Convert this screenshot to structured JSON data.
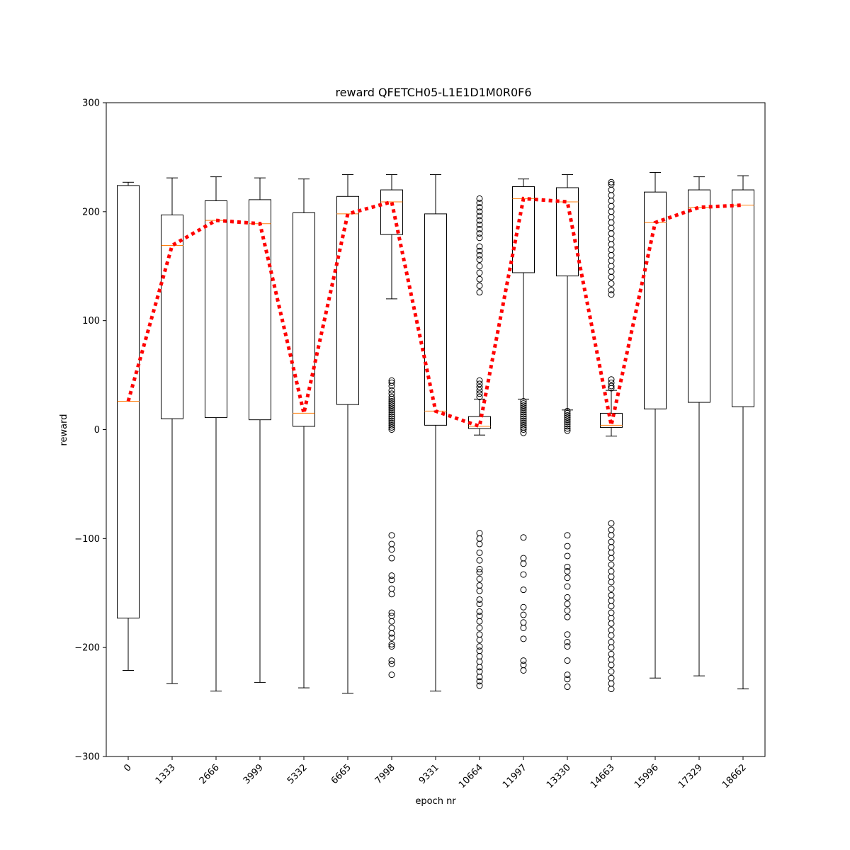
{
  "chart_data": {
    "type": "box",
    "title": "reward QFETCH05-L1E1D1M0R0F6",
    "xlabel": "epoch nr",
    "ylabel": "reward",
    "ylim": [
      -300,
      300
    ],
    "yticks": [
      -300,
      -200,
      -100,
      0,
      100,
      200,
      300
    ],
    "categories": [
      "0",
      "1333",
      "2666",
      "3999",
      "5332",
      "6665",
      "7998",
      "9331",
      "10664",
      "11997",
      "13330",
      "14663",
      "15996",
      "17329",
      "18662"
    ],
    "boxes": [
      {
        "label": "0",
        "whislo": -221,
        "q1": -173,
        "med": 26,
        "q3": 224,
        "whishi": 227,
        "fliers": []
      },
      {
        "label": "1333",
        "whislo": -233,
        "q1": 10,
        "med": 169,
        "q3": 197,
        "whishi": 231,
        "fliers": []
      },
      {
        "label": "2666",
        "whislo": -240,
        "q1": 11,
        "med": 192,
        "q3": 210,
        "whishi": 232,
        "fliers": []
      },
      {
        "label": "3999",
        "whislo": -232,
        "q1": 9,
        "med": 189,
        "q3": 211,
        "whishi": 231,
        "fliers": []
      },
      {
        "label": "5332",
        "whislo": -237,
        "q1": 3,
        "med": 15,
        "q3": 199,
        "whishi": 230,
        "fliers": []
      },
      {
        "label": "6665",
        "whislo": -242,
        "q1": 23,
        "med": 198,
        "q3": 214,
        "whishi": 234,
        "fliers": []
      },
      {
        "label": "7998",
        "whislo": 120,
        "q1": 179,
        "med": 209,
        "q3": 220,
        "whishi": 234,
        "fliers": [
          0,
          2,
          4,
          6,
          8,
          10,
          12,
          14,
          16,
          18,
          20,
          22,
          24,
          26,
          28,
          30,
          33,
          36,
          40,
          43,
          45,
          -97,
          -105,
          -110,
          -118,
          -134,
          -138,
          -146,
          -151,
          -168,
          -171,
          -176,
          -182,
          -187,
          -191,
          -197,
          -199,
          -212,
          -215,
          -225
        ]
      },
      {
        "label": "9331",
        "whislo": -240,
        "q1": 4,
        "med": 17,
        "q3": 198,
        "whishi": 234,
        "fliers": []
      },
      {
        "label": "10664",
        "whislo": -5,
        "q1": 1,
        "med": 3,
        "q3": 12,
        "whishi": 28,
        "fliers": [
          30,
          33,
          36,
          39,
          42,
          45,
          126,
          132,
          138,
          144,
          150,
          156,
          160,
          164,
          168,
          176,
          180,
          184,
          188,
          192,
          196,
          200,
          204,
          208,
          212,
          -95,
          -100,
          -105,
          -113,
          -120,
          -128,
          -131,
          -137,
          -143,
          -148,
          -156,
          -160,
          -167,
          -171,
          -176,
          -182,
          -188,
          -193,
          -199,
          -203,
          -208,
          -213,
          -218,
          -222,
          -227,
          -231,
          -235
        ]
      },
      {
        "label": "11997",
        "whislo": 28,
        "q1": 144,
        "med": 212,
        "q3": 223,
        "whishi": 230,
        "fliers": [
          -3,
          0,
          2,
          4,
          6,
          8,
          10,
          12,
          14,
          16,
          18,
          20,
          22,
          24,
          26,
          -99,
          -118,
          -123,
          -133,
          -147,
          -163,
          -170,
          -177,
          -182,
          -192,
          -212,
          -216,
          -221
        ]
      },
      {
        "label": "13330",
        "whislo": 18,
        "q1": 141,
        "med": 209,
        "q3": 222,
        "whishi": 234,
        "fliers": [
          -1,
          1,
          3,
          5,
          7,
          9,
          11,
          13,
          15,
          17,
          -97,
          -107,
          -116,
          -126,
          -130,
          -136,
          -144,
          -154,
          -160,
          -166,
          -172,
          -188,
          -195,
          -199,
          -212,
          -225,
          -229,
          -236
        ]
      },
      {
        "label": "14663",
        "whislo": -6,
        "q1": 2,
        "med": 4,
        "q3": 15,
        "whishi": 36,
        "fliers": [
          38,
          40,
          43,
          46,
          124,
          128,
          134,
          140,
          145,
          150,
          155,
          160,
          165,
          170,
          175,
          180,
          185,
          190,
          195,
          200,
          205,
          210,
          215,
          220,
          225,
          227,
          -86,
          -92,
          -97,
          -103,
          -108,
          -113,
          -118,
          -124,
          -130,
          -135,
          -140,
          -146,
          -152,
          -157,
          -162,
          -168,
          -173,
          -178,
          -184,
          -189,
          -195,
          -200,
          -206,
          -211,
          -216,
          -222,
          -228,
          -233,
          -238
        ]
      },
      {
        "label": "15996",
        "whislo": -228,
        "q1": 19,
        "med": 190,
        "q3": 218,
        "whishi": 236,
        "fliers": []
      },
      {
        "label": "17329",
        "whislo": -226,
        "q1": 25,
        "med": 204,
        "q3": 220,
        "whishi": 232,
        "fliers": []
      },
      {
        "label": "18662",
        "whislo": -238,
        "q1": 21,
        "med": 206,
        "q3": 220,
        "whishi": 233,
        "fliers": []
      }
    ],
    "median_line": {
      "values": [
        26,
        169,
        192,
        189,
        15,
        198,
        209,
        17,
        3,
        212,
        209,
        4,
        190,
        204,
        206
      ],
      "color": "#ff0000",
      "style": "dotted"
    },
    "colors": {
      "box": "#000000",
      "median": "#ff7f0e",
      "trend": "#ff0000",
      "flier": "#000000"
    },
    "grid": false,
    "legend": null
  }
}
